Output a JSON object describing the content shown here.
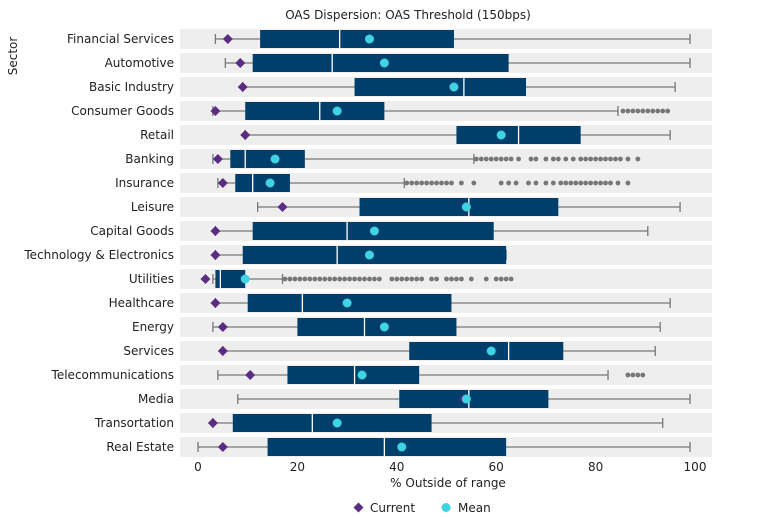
{
  "chart_data": {
    "type": "box",
    "title": "OAS Dispersion: OAS Threshold (150bps)",
    "xlabel": "% Outside of range",
    "ylabel": "Sector",
    "xlim": [
      0,
      100
    ],
    "xticks": [
      0,
      20,
      40,
      60,
      80,
      100
    ],
    "legend": {
      "placement": "bottom-center",
      "items": [
        "Current",
        "Mean"
      ]
    },
    "colors": {
      "box": "#003f6b",
      "whisker": "#777777",
      "outlier": "#777777",
      "current": "#5b2c83",
      "mean": "#3fd3e3",
      "row_band": "#eeeeee"
    },
    "series": [
      {
        "sector": "Financial Services",
        "min": 3.5,
        "q1": 12.5,
        "median": 28.5,
        "q3": 51.5,
        "max": 99,
        "mean": 34.5,
        "current": 6,
        "outliers": []
      },
      {
        "sector": "Automotive",
        "min": 5.5,
        "q1": 11,
        "median": 27,
        "q3": 62.5,
        "max": 99,
        "mean": 37.5,
        "current": 8.5,
        "outliers": []
      },
      {
        "sector": "Basic Industry",
        "min": 9,
        "q1": 31.5,
        "median": 53.5,
        "q3": 66,
        "max": 96,
        "mean": 51.5,
        "current": 9,
        "outliers": []
      },
      {
        "sector": "Consumer Goods",
        "min": 3,
        "q1": 9.5,
        "median": 24.5,
        "q3": 37.5,
        "max": 84.5,
        "mean": 28,
        "current": 3.5,
        "outliers": [
          85.5,
          86.5,
          87.5,
          88.5,
          89.5,
          90.5,
          91.5,
          92.5,
          93.5,
          94.5
        ]
      },
      {
        "sector": "Retail",
        "min": 9.5,
        "q1": 52,
        "median": 64.5,
        "q3": 77,
        "max": 95,
        "mean": 61,
        "current": 9.5,
        "outliers": []
      },
      {
        "sector": "Banking",
        "min": 3,
        "q1": 6.5,
        "median": 9.5,
        "q3": 21.5,
        "max": 55.5,
        "mean": 15.5,
        "current": 4,
        "outliers": [
          56,
          57,
          58,
          59,
          60,
          61,
          62,
          63,
          64.5,
          67,
          68,
          70,
          71.5,
          72.5,
          74,
          75.5,
          77,
          78,
          79,
          80,
          81,
          82,
          83,
          84,
          85,
          86.5,
          88.5
        ]
      },
      {
        "sector": "Insurance",
        "min": 4,
        "q1": 7.5,
        "median": 11,
        "q3": 18.5,
        "max": 41.5,
        "mean": 14.5,
        "current": 5,
        "outliers": [
          42,
          43,
          44,
          45,
          46,
          47,
          48,
          49,
          50,
          51,
          53,
          55.5,
          61,
          62.5,
          64,
          66.5,
          68,
          70,
          71.5,
          73,
          74,
          75,
          76,
          77,
          78,
          79,
          80,
          81,
          82,
          83,
          84.5,
          86.5
        ]
      },
      {
        "sector": "Leisure",
        "min": 12,
        "q1": 32.5,
        "median": 54.5,
        "q3": 72.5,
        "max": 97,
        "mean": 54,
        "current": 17,
        "outliers": []
      },
      {
        "sector": "Capital Goods",
        "min": 3.5,
        "q1": 11,
        "median": 30,
        "q3": 59.5,
        "max": 90.5,
        "mean": 35.5,
        "current": 3.5,
        "outliers": []
      },
      {
        "sector": "Technology & Electronics",
        "min": 3.5,
        "q1": 9,
        "median": 28,
        "q3": 62,
        "max": 62,
        "mean": 34.5,
        "current": 3.5,
        "outliers": []
      },
      {
        "sector": "Utilities",
        "min": 3,
        "q1": 3.5,
        "median": 4.5,
        "q3": 9.5,
        "max": 17,
        "mean": 9.5,
        "current": 1.5,
        "outliers": [
          17.5,
          18.5,
          19.5,
          20.5,
          21.5,
          22.5,
          23.5,
          24.5,
          25.5,
          26.5,
          27.5,
          28.5,
          29.5,
          30.5,
          31.5,
          32.5,
          33.5,
          34.5,
          35.5,
          36.5,
          39,
          40,
          41,
          42,
          43,
          44,
          45,
          47,
          48,
          50,
          51,
          52,
          53,
          55,
          58,
          60,
          61,
          62,
          63
        ]
      },
      {
        "sector": "Healthcare",
        "min": 3.5,
        "q1": 10,
        "median": 21,
        "q3": 51,
        "max": 95,
        "mean": 30,
        "current": 3.5,
        "outliers": []
      },
      {
        "sector": "Energy",
        "min": 3,
        "q1": 20,
        "median": 33.5,
        "q3": 52,
        "max": 93,
        "mean": 37.5,
        "current": 5,
        "outliers": []
      },
      {
        "sector": "Services",
        "min": 5,
        "q1": 42.5,
        "median": 62.5,
        "q3": 73.5,
        "max": 92,
        "mean": 59,
        "current": 5,
        "outliers": []
      },
      {
        "sector": "Telecommunications",
        "min": 4,
        "q1": 18,
        "median": 31.5,
        "q3": 44.5,
        "max": 82.5,
        "mean": 33,
        "current": 10.5,
        "outliers": [
          86.5,
          87.5,
          88.5,
          89.5
        ]
      },
      {
        "sector": "Media",
        "min": 8,
        "q1": 40.5,
        "median": 54.5,
        "q3": 70.5,
        "max": 99,
        "mean": 54,
        "current": 53.5,
        "outliers": []
      },
      {
        "sector": "Transortation",
        "min": 3,
        "q1": 7,
        "median": 23,
        "q3": 47,
        "max": 93.5,
        "mean": 28,
        "current": 3,
        "outliers": []
      },
      {
        "sector": "Real Estate",
        "min": 0,
        "q1": 14,
        "median": 37.5,
        "q3": 62,
        "max": 99,
        "mean": 41,
        "current": 5,
        "outliers": []
      }
    ]
  }
}
